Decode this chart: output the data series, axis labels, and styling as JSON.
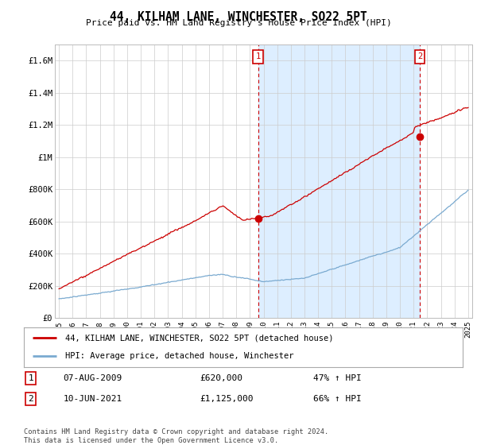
{
  "title": "44, KILHAM LANE, WINCHESTER, SO22 5PT",
  "subtitle": "Price paid vs. HM Land Registry's House Price Index (HPI)",
  "ylim": [
    0,
    1700000
  ],
  "yticks": [
    0,
    200000,
    400000,
    600000,
    800000,
    1000000,
    1200000,
    1400000,
    1600000
  ],
  "ytick_labels": [
    "£0",
    "£200K",
    "£400K",
    "£600K",
    "£800K",
    "£1M",
    "£1.2M",
    "£1.4M",
    "£1.6M"
  ],
  "year_start": 1995,
  "year_end": 2025,
  "line1_color": "#cc0000",
  "line2_color": "#7aaad0",
  "shade_color": "#ddeeff",
  "vline_color": "#cc0000",
  "sale1_year": 2009.6,
  "sale1_value": 620000,
  "sale2_year": 2021.45,
  "sale2_value": 1125000,
  "legend_line1": "44, KILHAM LANE, WINCHESTER, SO22 5PT (detached house)",
  "legend_line2": "HPI: Average price, detached house, Winchester",
  "table_row1": [
    "1",
    "07-AUG-2009",
    "£620,000",
    "47% ↑ HPI"
  ],
  "table_row2": [
    "2",
    "10-JUN-2021",
    "£1,125,000",
    "66% ↑ HPI"
  ],
  "footer": "Contains HM Land Registry data © Crown copyright and database right 2024.\nThis data is licensed under the Open Government Licence v3.0.",
  "background_color": "#ffffff",
  "grid_color": "#cccccc"
}
